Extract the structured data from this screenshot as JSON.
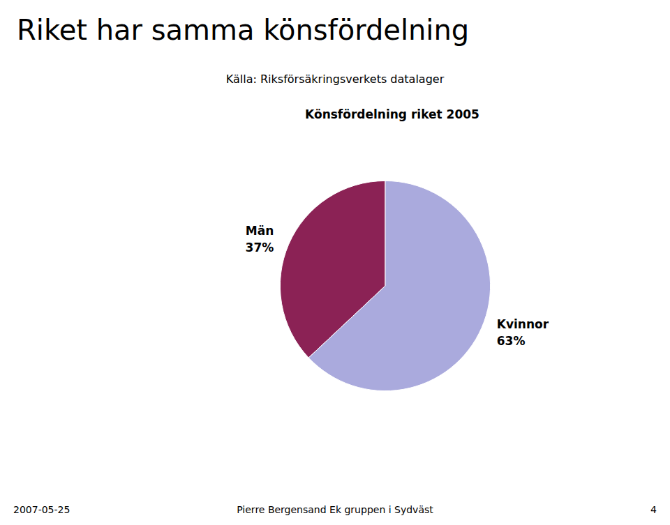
{
  "chart_data": {
    "type": "pie",
    "title": "Riket har samma könsfördelning",
    "subtitle": "Källa: Riksförsäkringsverkets datalager",
    "annotations": [
      "Könsfördelning riket 2005",
      "2007-05-25",
      "Pierre Bergensand Ek gruppen i Sydväst",
      "4"
    ],
    "categories": [
      "Män",
      "Kvinnor"
    ],
    "values": [
      37,
      63
    ],
    "value_labels": [
      "37%",
      "63%"
    ],
    "data_labels": true,
    "colors": [
      "#8B2255",
      "#AAAADD"
    ],
    "legend": false
  }
}
